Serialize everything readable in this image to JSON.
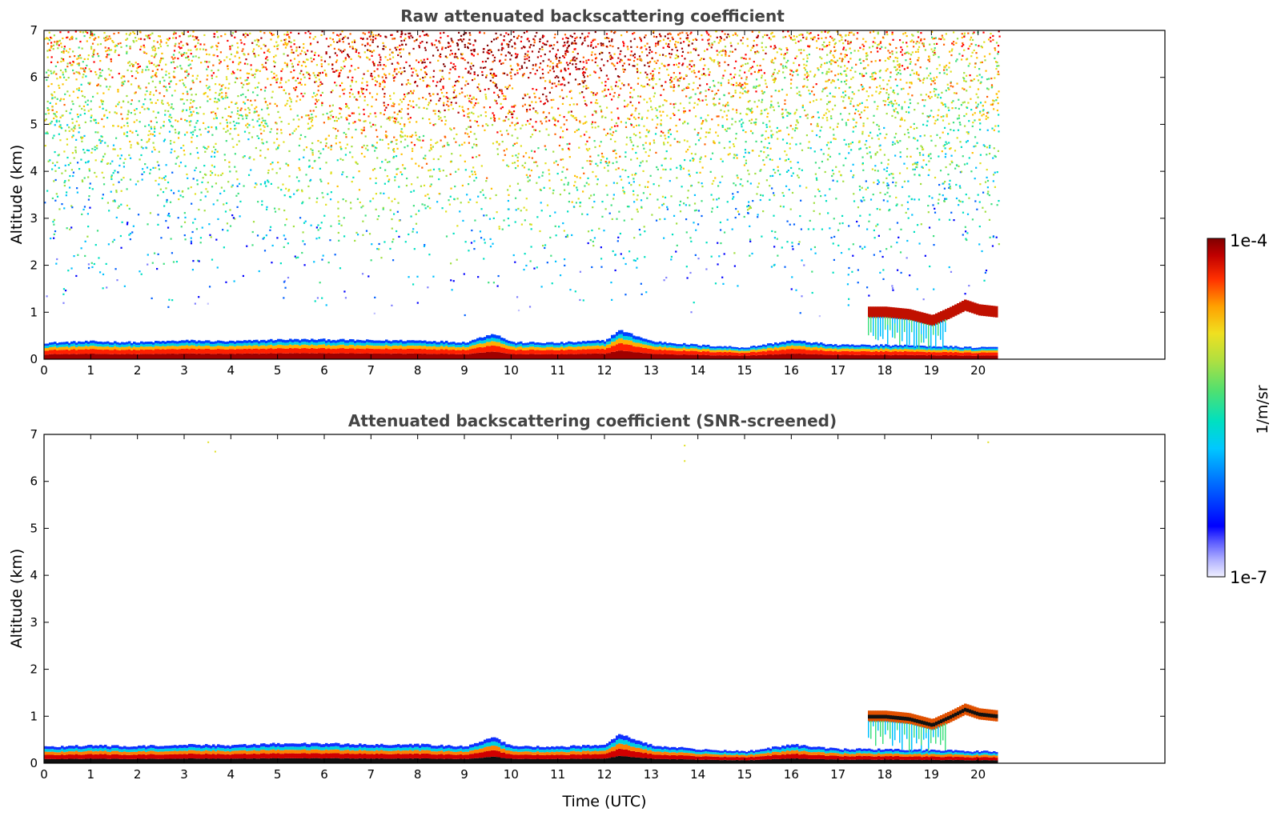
{
  "chart_data": [
    {
      "type": "heatmap",
      "title": "Raw attenuated backscattering coefficient",
      "xlabel": "",
      "ylabel": "Altitude (km)",
      "xlim": [
        0,
        24
      ],
      "ylim": [
        0,
        7
      ],
      "xticks": [
        "0",
        "1",
        "2",
        "3",
        "4",
        "5",
        "6",
        "7",
        "8",
        "9",
        "10",
        "11",
        "12",
        "13",
        "14",
        "15",
        "16",
        "17",
        "18",
        "19",
        "20"
      ],
      "yticks": [
        "0",
        "1",
        "2",
        "3",
        "4",
        "5",
        "6",
        "7"
      ],
      "data_end_time": 20.45,
      "features": [
        {
          "desc": "boundary layer top",
          "time": [
            0,
            1,
            2,
            3,
            4,
            5,
            6,
            7,
            8,
            9,
            9.6,
            10,
            11,
            12,
            12.3,
            13,
            14,
            15,
            16,
            17,
            18,
            19,
            20,
            20.45
          ],
          "altitude_km": [
            0.35,
            0.38,
            0.36,
            0.4,
            0.38,
            0.42,
            0.42,
            0.4,
            0.4,
            0.36,
            0.55,
            0.36,
            0.35,
            0.4,
            0.62,
            0.38,
            0.3,
            0.25,
            0.4,
            0.3,
            0.3,
            0.28,
            0.25,
            0.25
          ]
        },
        {
          "desc": "cloud layer",
          "time": [
            18.0,
            18.5,
            19.0,
            19.4,
            19.7,
            20.0,
            20.45
          ],
          "altitude_km": [
            1.0,
            0.95,
            0.82,
            1.0,
            1.15,
            1.05,
            1.0
          ]
        }
      ]
    },
    {
      "type": "heatmap",
      "title": "Attenuated backscattering coefficient (SNR-screened)",
      "xlabel": "Time (UTC)",
      "ylabel": "Altitude (km)",
      "xlim": [
        0,
        24
      ],
      "ylim": [
        0,
        7
      ],
      "xticks": [
        "0",
        "1",
        "2",
        "3",
        "4",
        "5",
        "6",
        "7",
        "8",
        "9",
        "10",
        "11",
        "12",
        "13",
        "14",
        "15",
        "16",
        "17",
        "18",
        "19",
        "20"
      ],
      "yticks": [
        "0",
        "1",
        "2",
        "3",
        "4",
        "5",
        "6",
        "7"
      ],
      "data_end_time": 20.45
    }
  ],
  "colorbar": {
    "max_label": "1e-4",
    "min_label": "1e-7",
    "label": "1/m/sr",
    "colormap": [
      "#f0f0ff",
      "#c0c0ff",
      "#8080ff",
      "#0000ff",
      "#0060ff",
      "#00c0ff",
      "#00e0c0",
      "#40e080",
      "#a0e040",
      "#e0e020",
      "#ffc000",
      "#ff6000",
      "#ff0000",
      "#b00000",
      "#800000"
    ]
  }
}
